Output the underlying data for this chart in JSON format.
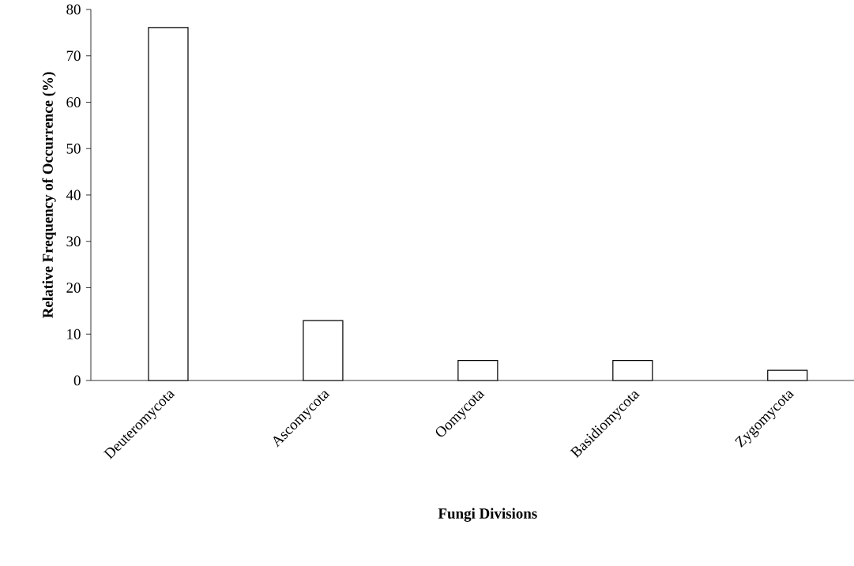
{
  "chart_data": {
    "type": "bar",
    "xlabel": "Fungi Divisions",
    "ylabel": "Relative Frequency of Occurrence (%)",
    "categories": [
      "Deuteromycota",
      "Ascomycota",
      "Oomycota",
      "Basidiomycota",
      "Zygomycota"
    ],
    "values": [
      76.1,
      12.9,
      4.3,
      4.3,
      2.2
    ],
    "color": "#ffffff",
    "ylim": [
      0,
      80
    ],
    "yticks": [
      0,
      10,
      20,
      30,
      40,
      50,
      60,
      70,
      80
    ],
    "grid": false
  }
}
